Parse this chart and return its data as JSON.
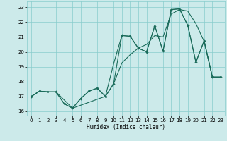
{
  "xlabel": "Humidex (Indice chaleur)",
  "bg_color": "#cceaea",
  "grid_color": "#88cccc",
  "line_color": "#1a6b5a",
  "xlim": [
    -0.5,
    23.5
  ],
  "ylim": [
    15.7,
    23.4
  ],
  "xticks": [
    0,
    1,
    2,
    3,
    4,
    5,
    6,
    7,
    8,
    9,
    10,
    11,
    12,
    13,
    14,
    15,
    16,
    17,
    18,
    19,
    20,
    21,
    22,
    23
  ],
  "yticks": [
    16,
    17,
    18,
    19,
    20,
    21,
    22,
    23
  ],
  "line_zigzag_x": [
    0,
    1,
    2,
    3,
    4,
    5,
    6,
    7,
    8,
    9,
    10,
    11,
    12,
    13,
    14,
    15,
    16,
    17,
    18,
    19,
    20,
    21,
    22,
    23
  ],
  "line_zigzag_y": [
    17.0,
    17.35,
    17.3,
    17.3,
    16.5,
    16.2,
    16.85,
    17.35,
    17.55,
    17.0,
    17.85,
    21.1,
    21.05,
    20.25,
    20.0,
    21.75,
    20.05,
    22.85,
    22.9,
    21.8,
    19.3,
    20.75,
    18.3,
    18.3
  ],
  "line_smooth_x": [
    0,
    1,
    2,
    3,
    4,
    5,
    6,
    7,
    8,
    9,
    10,
    11,
    12,
    13,
    14,
    15,
    16,
    17,
    18,
    19,
    20,
    21,
    22,
    23
  ],
  "line_smooth_y": [
    17.0,
    17.35,
    17.3,
    17.3,
    16.5,
    16.2,
    16.85,
    17.35,
    17.55,
    17.0,
    19.2,
    21.1,
    21.05,
    20.25,
    20.0,
    21.75,
    20.05,
    22.85,
    22.9,
    21.8,
    19.3,
    20.75,
    18.3,
    18.3
  ],
  "line_trend_x": [
    0,
    1,
    2,
    3,
    5,
    9,
    10,
    11,
    12,
    13,
    14,
    15,
    16,
    17,
    18,
    19,
    20,
    21,
    22,
    23
  ],
  "line_trend_y": [
    17.0,
    17.35,
    17.3,
    17.3,
    16.2,
    17.0,
    17.85,
    19.25,
    19.8,
    20.25,
    20.5,
    21.1,
    21.0,
    22.55,
    22.85,
    22.75,
    21.9,
    20.7,
    18.3,
    18.3
  ]
}
